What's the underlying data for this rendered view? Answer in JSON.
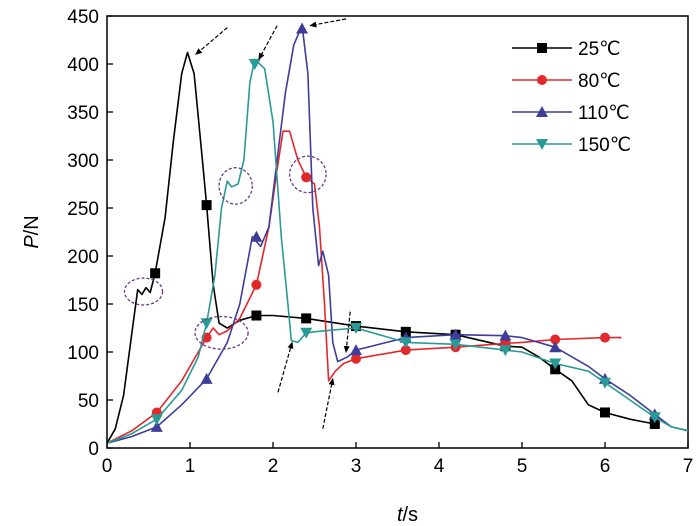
{
  "chart_data": {
    "type": "line",
    "xlabel": "t/s",
    "ylabel": "P/N",
    "xlim": [
      0,
      7
    ],
    "ylim": [
      0,
      450
    ],
    "xticks": [
      0,
      1,
      2,
      3,
      4,
      5,
      6,
      7
    ],
    "yticks": [
      0,
      50,
      100,
      150,
      200,
      250,
      300,
      350,
      400,
      450
    ],
    "grid": false,
    "legend_position": "top-right",
    "series": [
      {
        "name": "25℃",
        "color": "#000000",
        "marker": "square",
        "points": [
          [
            0,
            5
          ],
          [
            0.1,
            20
          ],
          [
            0.2,
            55
          ],
          [
            0.3,
            120
          ],
          [
            0.37,
            165
          ],
          [
            0.42,
            160
          ],
          [
            0.47,
            167
          ],
          [
            0.52,
            162
          ],
          [
            0.58,
            182
          ],
          [
            0.7,
            240
          ],
          [
            0.8,
            320
          ],
          [
            0.9,
            390
          ],
          [
            0.97,
            412
          ],
          [
            1.05,
            390
          ],
          [
            1.15,
            300
          ],
          [
            1.2,
            253
          ],
          [
            1.28,
            170
          ],
          [
            1.35,
            130
          ],
          [
            1.45,
            125
          ],
          [
            1.6,
            133
          ],
          [
            1.8,
            138
          ],
          [
            2.0,
            138
          ],
          [
            2.4,
            135
          ],
          [
            3.0,
            127
          ],
          [
            3.6,
            121
          ],
          [
            4.2,
            118
          ],
          [
            4.8,
            106
          ],
          [
            5.0,
            105
          ],
          [
            5.2,
            95
          ],
          [
            5.4,
            82
          ],
          [
            5.6,
            70
          ],
          [
            5.8,
            45
          ],
          [
            6.0,
            37
          ],
          [
            6.3,
            30
          ],
          [
            6.6,
            25
          ]
        ],
        "markers_at": [
          [
            0.58,
            182
          ],
          [
            1.2,
            253
          ],
          [
            1.8,
            138
          ],
          [
            2.4,
            135
          ],
          [
            3.0,
            127
          ],
          [
            3.6,
            121
          ],
          [
            4.2,
            118
          ],
          [
            4.8,
            106
          ],
          [
            5.4,
            82
          ],
          [
            6.0,
            37
          ],
          [
            6.6,
            25
          ]
        ]
      },
      {
        "name": "80℃",
        "color": "#e3282b",
        "marker": "circle",
        "points": [
          [
            0,
            5
          ],
          [
            0.3,
            18
          ],
          [
            0.6,
            37
          ],
          [
            0.9,
            70
          ],
          [
            1.1,
            100
          ],
          [
            1.2,
            115
          ],
          [
            1.28,
            125
          ],
          [
            1.35,
            118
          ],
          [
            1.45,
            122
          ],
          [
            1.6,
            135
          ],
          [
            1.8,
            170
          ],
          [
            1.95,
            230
          ],
          [
            2.05,
            290
          ],
          [
            2.12,
            330
          ],
          [
            2.2,
            330
          ],
          [
            2.3,
            300
          ],
          [
            2.4,
            282
          ],
          [
            2.5,
            275
          ],
          [
            2.56,
            230
          ],
          [
            2.62,
            150
          ],
          [
            2.67,
            70
          ],
          [
            2.75,
            80
          ],
          [
            2.85,
            88
          ],
          [
            3.0,
            93
          ],
          [
            3.6,
            102
          ],
          [
            4.2,
            105
          ],
          [
            4.8,
            109
          ],
          [
            5.0,
            110
          ],
          [
            5.4,
            113
          ],
          [
            6.0,
            115
          ],
          [
            6.2,
            115
          ]
        ],
        "markers_at": [
          [
            0.6,
            37
          ],
          [
            1.2,
            115
          ],
          [
            1.8,
            170
          ],
          [
            2.4,
            282
          ],
          [
            3.0,
            93
          ],
          [
            3.6,
            102
          ],
          [
            4.2,
            105
          ],
          [
            4.8,
            109
          ],
          [
            5.4,
            113
          ],
          [
            6.0,
            115
          ]
        ]
      },
      {
        "name": "110℃",
        "color": "#3e3d9a",
        "marker": "triangle-up",
        "points": [
          [
            0,
            5
          ],
          [
            0.3,
            12
          ],
          [
            0.6,
            22
          ],
          [
            0.9,
            45
          ],
          [
            1.2,
            72
          ],
          [
            1.45,
            110
          ],
          [
            1.6,
            150
          ],
          [
            1.75,
            220
          ],
          [
            1.85,
            210
          ],
          [
            1.95,
            230
          ],
          [
            2.05,
            300
          ],
          [
            2.15,
            370
          ],
          [
            2.25,
            420
          ],
          [
            2.35,
            440
          ],
          [
            2.42,
            390
          ],
          [
            2.48,
            250
          ],
          [
            2.55,
            190
          ],
          [
            2.6,
            205
          ],
          [
            2.67,
            180
          ],
          [
            2.72,
            110
          ],
          [
            2.78,
            90
          ],
          [
            2.9,
            95
          ],
          [
            3.0,
            102
          ],
          [
            3.6,
            115
          ],
          [
            4.2,
            118
          ],
          [
            4.8,
            117
          ],
          [
            5.0,
            115
          ],
          [
            5.4,
            105
          ],
          [
            5.8,
            85
          ],
          [
            6.0,
            72
          ],
          [
            6.3,
            55
          ],
          [
            6.6,
            35
          ],
          [
            6.8,
            22
          ],
          [
            7.0,
            18
          ]
        ],
        "markers_at": [
          [
            0.6,
            22
          ],
          [
            1.2,
            72
          ],
          [
            1.8,
            220
          ],
          [
            2.35,
            437
          ],
          [
            3.0,
            102
          ],
          [
            3.6,
            115
          ],
          [
            4.2,
            118
          ],
          [
            4.8,
            117
          ],
          [
            5.4,
            105
          ],
          [
            6.0,
            72
          ],
          [
            6.6,
            35
          ]
        ]
      },
      {
        "name": "150℃",
        "color": "#2a9a96",
        "marker": "triangle-down",
        "points": [
          [
            0,
            5
          ],
          [
            0.3,
            15
          ],
          [
            0.6,
            30
          ],
          [
            0.9,
            60
          ],
          [
            1.1,
            95
          ],
          [
            1.2,
            130
          ],
          [
            1.3,
            180
          ],
          [
            1.38,
            250
          ],
          [
            1.45,
            278
          ],
          [
            1.5,
            272
          ],
          [
            1.58,
            275
          ],
          [
            1.65,
            300
          ],
          [
            1.72,
            380
          ],
          [
            1.78,
            405
          ],
          [
            1.9,
            395
          ],
          [
            2.0,
            340
          ],
          [
            2.1,
            220
          ],
          [
            2.18,
            150
          ],
          [
            2.22,
            112
          ],
          [
            2.3,
            110
          ],
          [
            2.4,
            120
          ],
          [
            2.6,
            122
          ],
          [
            3.0,
            125
          ],
          [
            3.6,
            110
          ],
          [
            4.2,
            108
          ],
          [
            4.8,
            102
          ],
          [
            5.0,
            100
          ],
          [
            5.4,
            88
          ],
          [
            5.8,
            80
          ],
          [
            6.0,
            68
          ],
          [
            6.3,
            50
          ],
          [
            6.6,
            32
          ],
          [
            6.8,
            22
          ],
          [
            7.0,
            18
          ]
        ],
        "markers_at": [
          [
            0.6,
            30
          ],
          [
            1.2,
            130
          ],
          [
            1.78,
            400
          ],
          [
            2.4,
            120
          ],
          [
            3.0,
            125
          ],
          [
            3.6,
            110
          ],
          [
            4.2,
            108
          ],
          [
            4.8,
            102
          ],
          [
            5.4,
            88
          ],
          [
            6.0,
            68
          ],
          [
            6.6,
            32
          ]
        ]
      }
    ],
    "annotations": {
      "ellipses": [
        {
          "name": "25℃-shoulder",
          "center": [
            0.44,
            163
          ],
          "rx": 0.23,
          "ry": 14
        },
        {
          "name": "80℃-shoulder-low",
          "center": [
            1.38,
            120
          ],
          "rx": 0.32,
          "ry": 17
        },
        {
          "name": "150℃-shoulder",
          "center": [
            1.55,
            273
          ],
          "rx": 0.2,
          "ry": 19
        },
        {
          "name": "80℃-shoulder-high",
          "center": [
            2.42,
            285
          ],
          "rx": 0.22,
          "ry": 19
        }
      ],
      "arrows": [
        {
          "name": "arrow-peak-25",
          "from": [
            1.45,
            438
          ],
          "to": [
            1.07,
            410
          ]
        },
        {
          "name": "arrow-peak-150",
          "from": [
            2.05,
            440
          ],
          "to": [
            1.83,
            405
          ]
        },
        {
          "name": "arrow-peak-110",
          "from": [
            2.88,
            447
          ],
          "to": [
            2.45,
            440
          ]
        },
        {
          "name": "arrow-drop-150",
          "from": [
            2.06,
            58
          ],
          "to": [
            2.23,
            110
          ]
        },
        {
          "name": "arrow-drop-110",
          "from": [
            2.93,
            142
          ],
          "to": [
            2.88,
            100
          ]
        },
        {
          "name": "arrow-drop-80",
          "from": [
            2.6,
            20
          ],
          "to": [
            2.72,
            72
          ]
        }
      ]
    }
  }
}
